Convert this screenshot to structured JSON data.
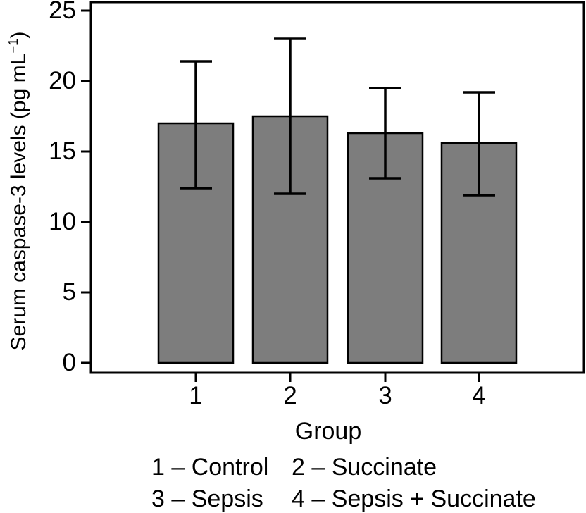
{
  "figure": {
    "background": "#ffffff"
  },
  "chart_data": {
    "type": "bar",
    "title": "",
    "xlabel": "Group",
    "ylabel": "Serum caspase-3 levels (pg mL⁻¹)",
    "ylabel_parts": {
      "main": "Serum caspase-3 levels (pg mL",
      "sup": "−1",
      "close": ")"
    },
    "ylim": [
      0,
      25
    ],
    "yticks": [
      0,
      5,
      10,
      15,
      20,
      25
    ],
    "categories": [
      "1",
      "2",
      "3",
      "4"
    ],
    "series": [
      {
        "name": "Serum caspase-3 levels",
        "values": [
          17.0,
          17.5,
          16.3,
          15.6
        ],
        "error_upper": [
          4.4,
          5.5,
          3.2,
          3.6
        ],
        "error_lower": [
          4.6,
          5.5,
          3.2,
          3.7
        ]
      }
    ],
    "grid": false,
    "legend_position": "below-chart",
    "colors": {
      "bar_fill": "#7d7d7d",
      "bar_border": "#000000",
      "error_bar": "#000000",
      "axis": "#000000",
      "text": "#000000"
    },
    "legend": {
      "items": [
        {
          "key": "1",
          "label": "Control",
          "text": "1 – Control"
        },
        {
          "key": "2",
          "label": "Succinate",
          "text": "2 – Succinate"
        },
        {
          "key": "3",
          "label": "Sepsis",
          "text": "3 – Sepsis"
        },
        {
          "key": "4",
          "label": "Sepsis + Succinate",
          "text": "4 – Sepsis + Succinate"
        }
      ]
    }
  }
}
